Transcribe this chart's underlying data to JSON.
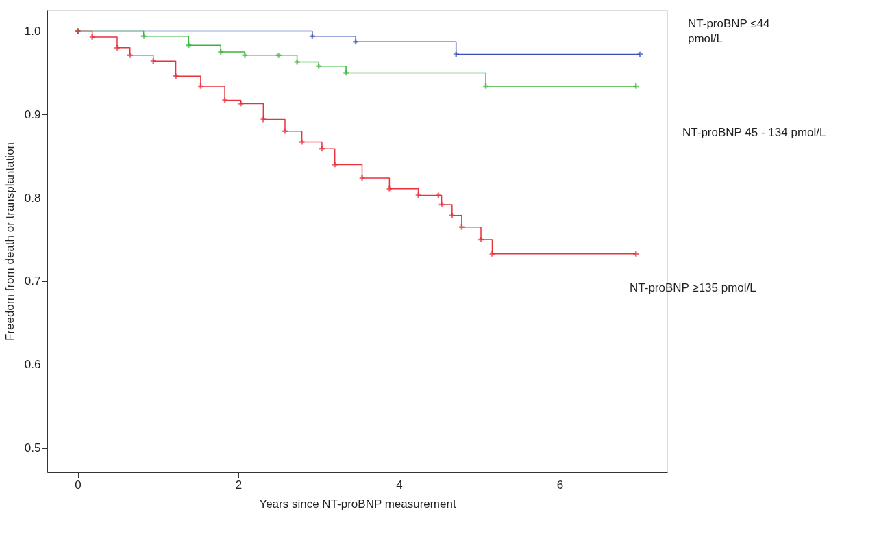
{
  "chart_data": {
    "type": "step",
    "xlabel": "Years since NT-proBNP measurement",
    "ylabel": "Freedom from death or transplantation",
    "xlim": [
      -0.38,
      7.34
    ],
    "ylim": [
      0.471,
      1.025
    ],
    "xticks": [
      0,
      2,
      4,
      6
    ],
    "yticks": [
      0.5,
      0.6,
      0.7,
      0.8,
      0.9,
      {
        "value": 1.0,
        "label": "1.0"
      }
    ],
    "grid": false,
    "legend": false,
    "marker": "cross",
    "line_style": "solid",
    "series": [
      {
        "name": "NT-proBNP ≤44\npmol/L",
        "color": "#3c50b4",
        "x": [
          0,
          2.92,
          3.46,
          4.71,
          7.0
        ],
        "values": [
          1.0,
          0.994,
          0.987,
          0.972,
          0.972
        ]
      },
      {
        "name": "NT-proBNP 45 - 134 pmol/L",
        "color": "#3cb43c",
        "x": [
          0,
          0.82,
          1.38,
          1.78,
          2.08,
          2.5,
          2.73,
          3.0,
          3.34,
          5.08,
          6.95
        ],
        "values": [
          1.0,
          0.994,
          0.983,
          0.975,
          0.971,
          0.971,
          0.963,
          0.958,
          0.95,
          0.934,
          0.934
        ]
      },
      {
        "name": "NT-proBNP ≥135 pmol/L",
        "color": "#e8323c",
        "x": [
          0,
          0.18,
          0.49,
          0.65,
          0.94,
          1.22,
          1.53,
          1.83,
          2.03,
          2.31,
          2.58,
          2.79,
          3.04,
          3.2,
          3.54,
          3.88,
          4.24,
          4.49,
          4.53,
          4.66,
          4.78,
          5.02,
          5.16,
          6.95
        ],
        "values": [
          1.0,
          0.993,
          0.98,
          0.971,
          0.964,
          0.946,
          0.934,
          0.917,
          0.913,
          0.894,
          0.88,
          0.867,
          0.859,
          0.84,
          0.824,
          0.811,
          0.803,
          0.803,
          0.792,
          0.779,
          0.765,
          0.75,
          0.733,
          0.733
        ]
      }
    ]
  }
}
